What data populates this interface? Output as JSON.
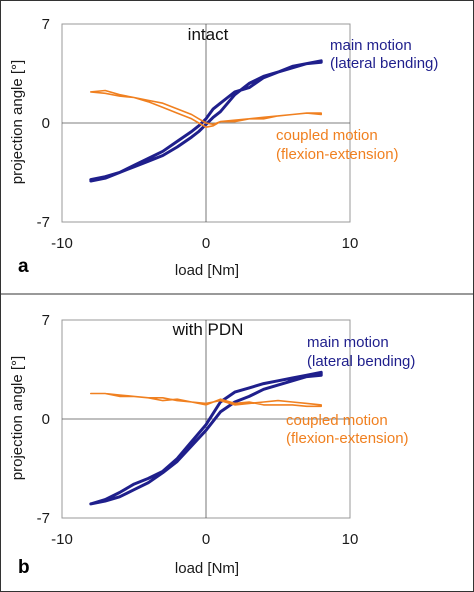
{
  "chart_data": [
    {
      "type": "line",
      "panel_label": "a",
      "title": "intact",
      "xlabel": "load [Nm]",
      "ylabel": "projection angle [°]",
      "xlim": [
        -10,
        10
      ],
      "ylim": [
        -7,
        7
      ],
      "xticks": [
        "-10",
        "0",
        "10"
      ],
      "yticks": [
        "7",
        "0",
        "-7"
      ],
      "grid": false,
      "colors": {
        "main": "#1f1f8c",
        "coupled": "#f08020",
        "axis": "#999999",
        "zero": "#555555"
      },
      "annotations": [
        {
          "series": "main",
          "lines": [
            "main motion",
            "(lateral bending)"
          ]
        },
        {
          "series": "coupled",
          "lines": [
            "coupled motion",
            "(flexion-extension)"
          ]
        }
      ],
      "series": [
        {
          "id": "main",
          "x": [
            -8,
            -7,
            -6,
            -5,
            -4,
            -3,
            -2,
            -1,
            -0.5,
            0,
            0.5,
            1,
            2,
            3,
            4,
            5,
            6,
            7,
            8,
            8,
            7,
            6,
            5,
            4,
            3,
            2,
            1.5,
            1,
            0.5,
            0,
            -0.5,
            -1,
            -2,
            -3,
            -4,
            -5,
            -6,
            -7,
            -8
          ],
          "y": [
            -4.0,
            -3.8,
            -3.5,
            -3.1,
            -2.7,
            -2.3,
            -1.7,
            -1.0,
            -0.6,
            -0.1,
            0.4,
            0.8,
            2.0,
            2.8,
            3.3,
            3.6,
            3.9,
            4.2,
            4.4,
            4.3,
            4.2,
            4.0,
            3.6,
            3.2,
            2.5,
            2.2,
            1.8,
            1.4,
            1.0,
            0.3,
            -0.2,
            -0.6,
            -1.3,
            -2.0,
            -2.5,
            -3.0,
            -3.5,
            -3.9,
            -4.1
          ]
        },
        {
          "id": "coupled",
          "x": [
            -8,
            -7,
            -6,
            -5,
            -4,
            -3,
            -2,
            -1,
            -0.5,
            0,
            0.5,
            1,
            2,
            3,
            4,
            5,
            6,
            7,
            8,
            8,
            7,
            6,
            5,
            4,
            3,
            2,
            1,
            0.5,
            0,
            -0.5,
            -1,
            -2,
            -3,
            -4,
            -5,
            -6,
            -7,
            -8
          ],
          "y": [
            2.2,
            2.3,
            2.0,
            1.8,
            1.5,
            1.1,
            0.7,
            0.3,
            0.0,
            -0.3,
            -0.2,
            0.1,
            0.2,
            0.3,
            0.4,
            0.5,
            0.6,
            0.7,
            0.6,
            0.7,
            0.7,
            0.6,
            0.5,
            0.3,
            0.3,
            0.1,
            0.1,
            -0.1,
            0.0,
            0.3,
            0.6,
            1.0,
            1.4,
            1.6,
            1.8,
            1.9,
            2.1,
            2.2
          ]
        }
      ]
    },
    {
      "type": "line",
      "panel_label": "b",
      "title": "with PDN",
      "xlabel": "load [Nm]",
      "ylabel": "projection angle [°]",
      "xlim": [
        -10,
        10
      ],
      "ylim": [
        -7,
        7
      ],
      "xticks": [
        "-10",
        "0",
        "10"
      ],
      "yticks": [
        "7",
        "0",
        "-7"
      ],
      "grid": false,
      "colors": {
        "main": "#1f1f8c",
        "coupled": "#f08020",
        "axis": "#999999",
        "zero": "#555555"
      },
      "annotations": [
        {
          "series": "main",
          "lines": [
            "main motion",
            "(lateral bending)"
          ]
        },
        {
          "series": "coupled",
          "lines": [
            "coupled motion",
            "(flexion-extension)"
          ]
        }
      ],
      "series": [
        {
          "id": "main",
          "x": [
            -8,
            -7,
            -6,
            -5,
            -4,
            -3,
            -2,
            -1,
            0,
            1,
            2,
            3,
            4,
            5,
            6,
            7,
            8,
            8,
            7,
            6,
            5,
            4,
            3,
            2,
            1,
            0,
            -1,
            -2,
            -3,
            -4,
            -5,
            -6,
            -7,
            -8
          ],
          "y": [
            -6.0,
            -5.7,
            -5.2,
            -4.6,
            -4.2,
            -3.7,
            -2.8,
            -1.6,
            -0.4,
            1.2,
            1.9,
            2.2,
            2.5,
            2.7,
            2.9,
            3.1,
            3.3,
            3.1,
            3.0,
            2.7,
            2.4,
            2.1,
            1.6,
            1.2,
            0.5,
            -0.8,
            -1.9,
            -3.0,
            -3.8,
            -4.5,
            -5.0,
            -5.5,
            -5.8,
            -6.0
          ]
        },
        {
          "id": "coupled",
          "x": [
            -8,
            -7,
            -6,
            -5,
            -4,
            -3,
            -2,
            -1,
            0,
            1,
            2,
            3,
            4,
            5,
            6,
            7,
            8,
            8,
            7,
            6,
            5,
            4,
            3,
            2,
            1,
            0,
            -1,
            -2,
            -3,
            -4,
            -5,
            -6,
            -7,
            -8
          ],
          "y": [
            1.8,
            1.8,
            1.6,
            1.6,
            1.5,
            1.5,
            1.3,
            1.2,
            1.0,
            1.4,
            1.1,
            1.2,
            1.0,
            1.0,
            1.0,
            0.9,
            0.9,
            1.0,
            1.1,
            1.2,
            1.3,
            1.2,
            1.1,
            1.0,
            1.3,
            1.1,
            1.2,
            1.4,
            1.3,
            1.5,
            1.6,
            1.7,
            1.8,
            1.8
          ]
        }
      ]
    }
  ]
}
